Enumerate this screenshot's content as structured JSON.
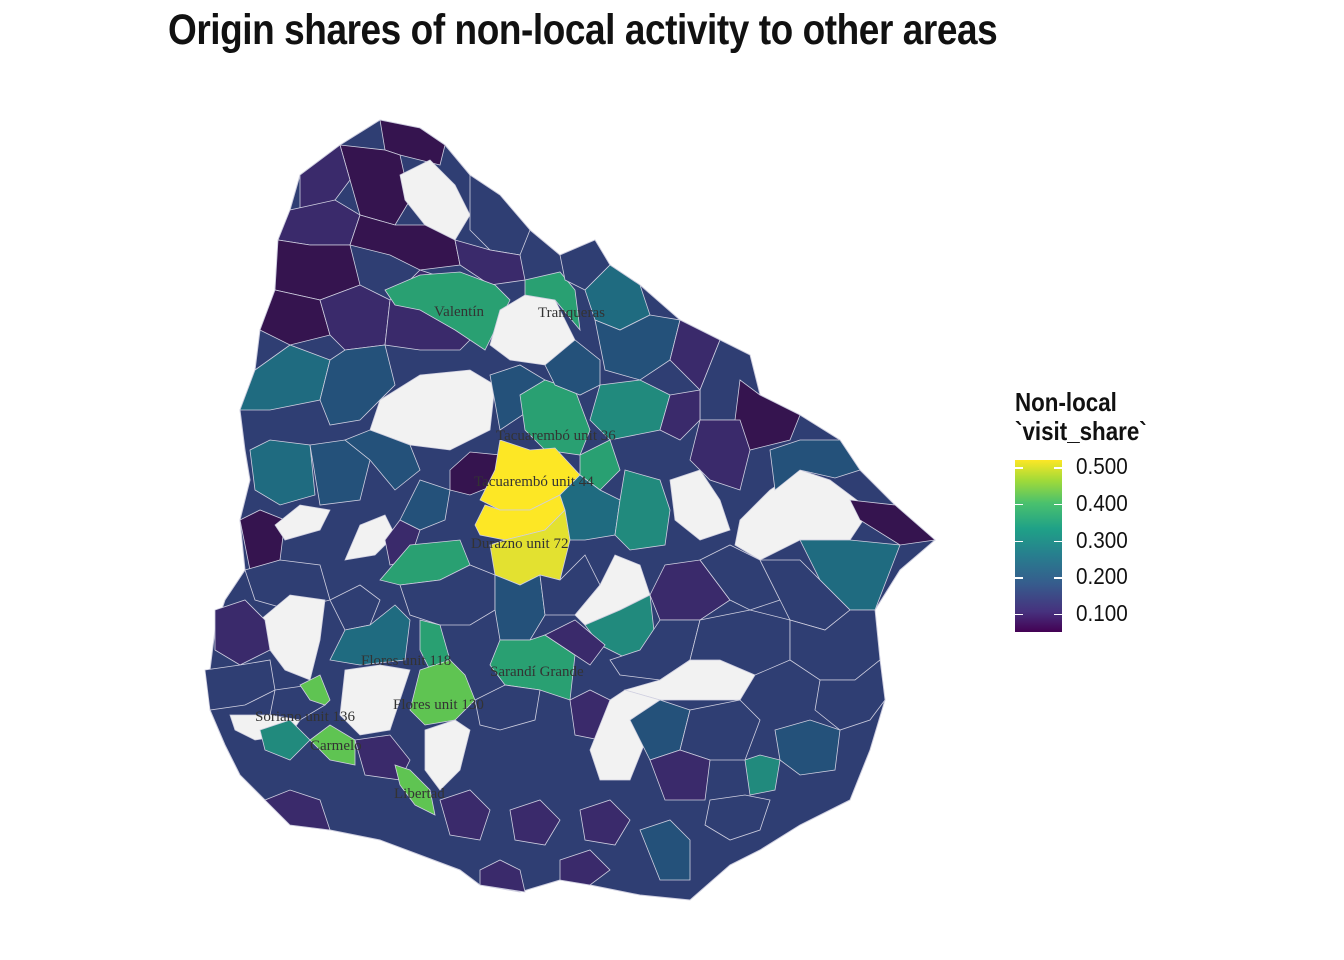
{
  "title": "Origin shares of non-local activity to other areas",
  "legend": {
    "title_line1": "Non-local",
    "title_line2": "`visit_share`",
    "ticks": [
      "0.500",
      "0.400",
      "0.300",
      "0.200",
      "0.100"
    ],
    "tick_values": [
      0.5,
      0.4,
      0.3,
      0.2,
      0.1
    ],
    "range": [
      0.05,
      0.52
    ],
    "palette": "viridis"
  },
  "colors": {
    "dark_purple": "#35144f",
    "purple": "#3a2a6b",
    "indigo": "#2f3e73",
    "blue": "#24517a",
    "teal": "#1f6b80",
    "teal_green": "#218a7d",
    "green": "#29a072",
    "light_green": "#5fc452",
    "yellow": "#fde725",
    "yellow2": "#e3e130",
    "no_data": "#f2f2f2"
  },
  "labels": [
    "Valentín",
    "Tranqueras",
    "Tacuarembó unit 36",
    "Tacuarembó unit 44",
    "Durazno unit 72",
    "Flores unit 118",
    "Sarandí Grande",
    "Flores unit 130",
    "Soriano unit 136",
    "Carmelo",
    "Libertad"
  ]
}
